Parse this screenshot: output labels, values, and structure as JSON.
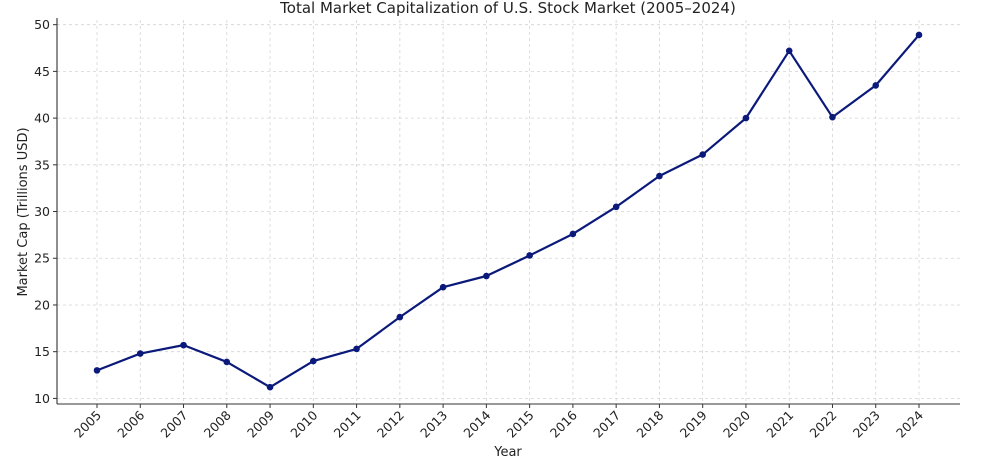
{
  "chart_data": {
    "type": "line",
    "title": "Total Market Capitalization of U.S. Stock Market (2005–2024)",
    "xlabel": "Year",
    "ylabel": "Market Cap (Trillions USD)",
    "categories": [
      "2005",
      "2006",
      "2007",
      "2008",
      "2009",
      "2010",
      "2011",
      "2012",
      "2013",
      "2014",
      "2015",
      "2016",
      "2017",
      "2018",
      "2019",
      "2020",
      "2021",
      "2022",
      "2023",
      "2024"
    ],
    "series": [
      {
        "values": [
          13.0,
          14.8,
          15.7,
          13.9,
          11.2,
          14.0,
          15.3,
          18.7,
          21.9,
          23.1,
          25.3,
          27.6,
          30.5,
          33.8,
          36.1,
          40.0,
          47.2,
          40.1,
          43.5,
          48.9
        ],
        "color": "#0b1a7a"
      }
    ],
    "ylim": [
      9.4,
      50.5
    ],
    "yticks": [
      10,
      15,
      20,
      25,
      30,
      35,
      40,
      45,
      50
    ],
    "grid": true,
    "legend": "none"
  }
}
